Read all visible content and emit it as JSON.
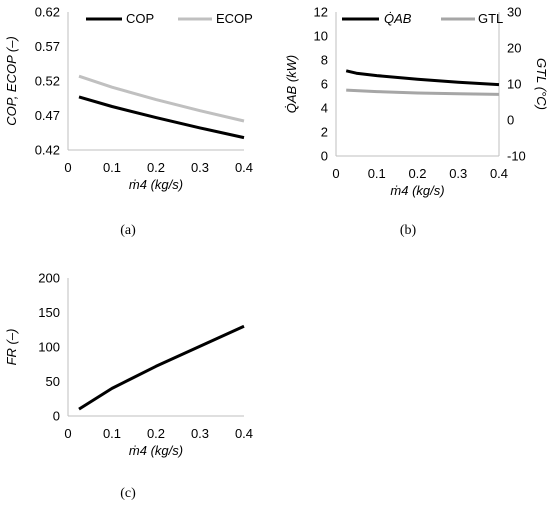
{
  "chart_data": [
    {
      "type": "line",
      "caption": "(a)",
      "xlabel": "ṁ4 (kg/s)",
      "ylabel": "COP, ECOP (–)",
      "xlim": [
        0,
        0.4
      ],
      "ylim": [
        0.42,
        0.62
      ],
      "x_ticks": [
        "0",
        "0.1",
        "0.2",
        "0.3",
        "0.4"
      ],
      "y_ticks": [
        "0.42",
        "0.47",
        "0.52",
        "0.57",
        "0.62"
      ],
      "legend_position": "top",
      "series": [
        {
          "name": "COP",
          "color": "#000000",
          "x": [
            0.025,
            0.1,
            0.2,
            0.3,
            0.4
          ],
          "y": [
            0.497,
            0.483,
            0.467,
            0.452,
            0.438
          ]
        },
        {
          "name": "ECOP",
          "color": "#c0c0c0",
          "x": [
            0.025,
            0.1,
            0.2,
            0.3,
            0.4
          ],
          "y": [
            0.527,
            0.511,
            0.493,
            0.477,
            0.462
          ]
        }
      ]
    },
    {
      "type": "line",
      "caption": "(b)",
      "xlabel": "ṁ4 (kg/s)",
      "ylabel_left": "Q̇AB (kW)",
      "ylabel_right": "GTL (°C)",
      "xlim": [
        0,
        0.4
      ],
      "ylim_left": [
        0,
        12
      ],
      "ylim_right": [
        -10,
        30
      ],
      "x_ticks": [
        "0",
        "0.1",
        "0.2",
        "0.3",
        "0.4"
      ],
      "y_ticks_left": [
        "0",
        "2",
        "4",
        "6",
        "8",
        "10",
        "12"
      ],
      "y_ticks_right": [
        "-10",
        "0",
        "10",
        "20",
        "30"
      ],
      "legend_position": "top",
      "series": [
        {
          "name": "Q̇AB",
          "axis": "left",
          "color": "#000000",
          "x": [
            0.025,
            0.05,
            0.1,
            0.2,
            0.3,
            0.4
          ],
          "y": [
            7.1,
            6.9,
            6.7,
            6.4,
            6.15,
            5.95
          ]
        },
        {
          "name": "GTL",
          "axis": "right",
          "color": "#a6a6a6",
          "x": [
            0.025,
            0.1,
            0.2,
            0.3,
            0.4
          ],
          "y": [
            8.3,
            7.9,
            7.5,
            7.3,
            7.1
          ]
        }
      ]
    },
    {
      "type": "line",
      "caption": "(c)",
      "xlabel": "ṁ4 (kg/s)",
      "ylabel": "FR (–)",
      "xlim": [
        0,
        0.4
      ],
      "ylim": [
        0,
        200
      ],
      "x_ticks": [
        "0",
        "0.1",
        "0.2",
        "0.3",
        "0.4"
      ],
      "y_ticks": [
        "0",
        "50",
        "100",
        "150",
        "200"
      ],
      "series": [
        {
          "name": "",
          "color": "#000000",
          "x": [
            0.025,
            0.1,
            0.2,
            0.3,
            0.4
          ],
          "y": [
            10,
            40,
            72,
            101,
            130
          ]
        }
      ]
    }
  ]
}
